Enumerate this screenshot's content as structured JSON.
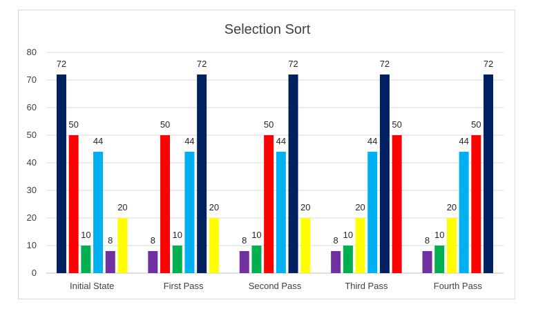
{
  "chart_data": {
    "type": "bar",
    "title": "Selection Sort",
    "categories": [
      "Initial State",
      "First Pass",
      "Second Pass",
      "Third Pass",
      "Fourth Pass"
    ],
    "ylim": [
      0,
      80
    ],
    "yticks": [
      0,
      10,
      20,
      30,
      40,
      50,
      60,
      70,
      80
    ],
    "grid": true,
    "legend": "none",
    "groups": [
      [
        {
          "value": 72,
          "color": "#002060"
        },
        {
          "value": 50,
          "color": "#FF0000"
        },
        {
          "value": 10,
          "color": "#00B050"
        },
        {
          "value": 44,
          "color": "#00B0F0"
        },
        {
          "value": 8,
          "color": "#7030A0"
        },
        {
          "value": 20,
          "color": "#FFFF00"
        }
      ],
      [
        {
          "value": 8,
          "color": "#7030A0"
        },
        {
          "value": 50,
          "color": "#FF0000"
        },
        {
          "value": 10,
          "color": "#00B050"
        },
        {
          "value": 44,
          "color": "#00B0F0"
        },
        {
          "value": 72,
          "color": "#002060"
        },
        {
          "value": 20,
          "color": "#FFFF00"
        }
      ],
      [
        {
          "value": 8,
          "color": "#7030A0"
        },
        {
          "value": 10,
          "color": "#00B050"
        },
        {
          "value": 50,
          "color": "#FF0000"
        },
        {
          "value": 44,
          "color": "#00B0F0"
        },
        {
          "value": 72,
          "color": "#002060"
        },
        {
          "value": 20,
          "color": "#FFFF00"
        }
      ],
      [
        {
          "value": 8,
          "color": "#7030A0"
        },
        {
          "value": 10,
          "color": "#00B050"
        },
        {
          "value": 20,
          "color": "#FFFF00"
        },
        {
          "value": 44,
          "color": "#00B0F0"
        },
        {
          "value": 72,
          "color": "#002060"
        },
        {
          "value": 50,
          "color": "#FF0000"
        }
      ],
      [
        {
          "value": 8,
          "color": "#7030A0"
        },
        {
          "value": 10,
          "color": "#00B050"
        },
        {
          "value": 20,
          "color": "#FFFF00"
        },
        {
          "value": 44,
          "color": "#00B0F0"
        },
        {
          "value": 50,
          "color": "#FF0000"
        },
        {
          "value": 72,
          "color": "#002060"
        }
      ]
    ]
  }
}
